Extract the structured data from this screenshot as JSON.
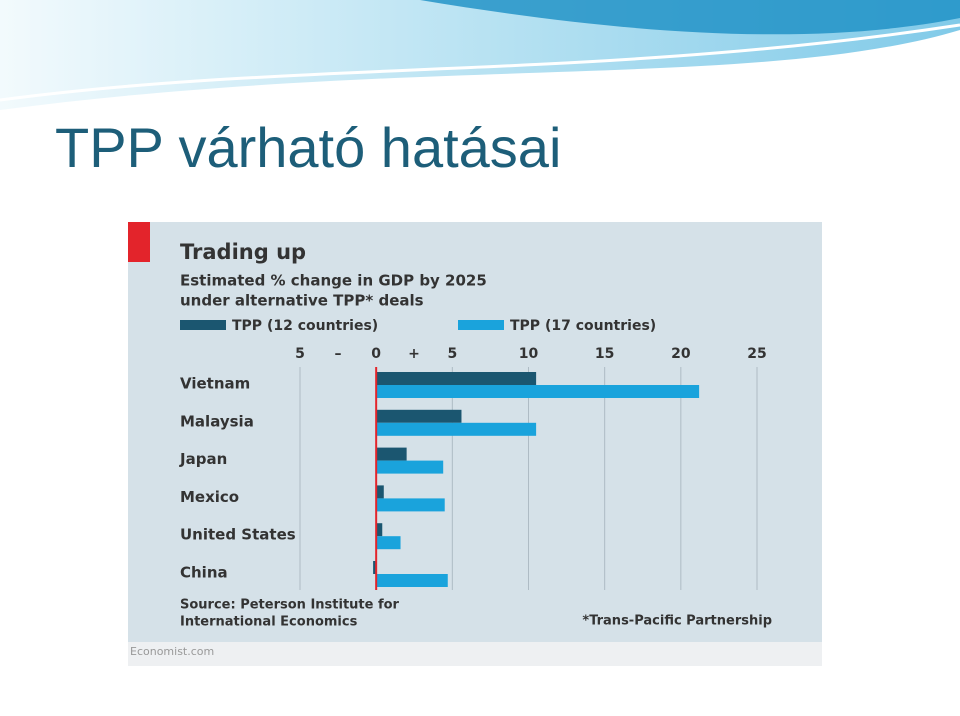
{
  "slide_title": "TPP várható hatásai",
  "chart_data": {
    "type": "bar",
    "orientation": "horizontal",
    "title": "Trading up",
    "subtitle": [
      "Estimated % change in GDP by 2025",
      "under alternative TPP* deals"
    ],
    "categories": [
      "Vietnam",
      "Malaysia",
      "Japan",
      "Mexico",
      "United States",
      "China"
    ],
    "series": [
      {
        "name": "TPP (12 countries)",
        "color": "#1b5670",
        "values": [
          10.5,
          5.6,
          2.0,
          0.5,
          0.4,
          -0.2
        ]
      },
      {
        "name": "TPP (17 countries)",
        "color": "#1aa3dc",
        "values": [
          21.2,
          10.5,
          4.4,
          4.5,
          1.6,
          4.7
        ]
      }
    ],
    "xlim": [
      -5,
      25
    ],
    "xticks": [
      {
        "value": -5,
        "label": "5"
      },
      0,
      5,
      10,
      15,
      20,
      25
    ],
    "sign_labels": [
      "–",
      "+"
    ],
    "grid": true,
    "source": [
      "Source: Peterson Institute for",
      "International Economics"
    ],
    "footnote": "*Trans-Pacific Partnership",
    "credit": "Economist.com"
  }
}
